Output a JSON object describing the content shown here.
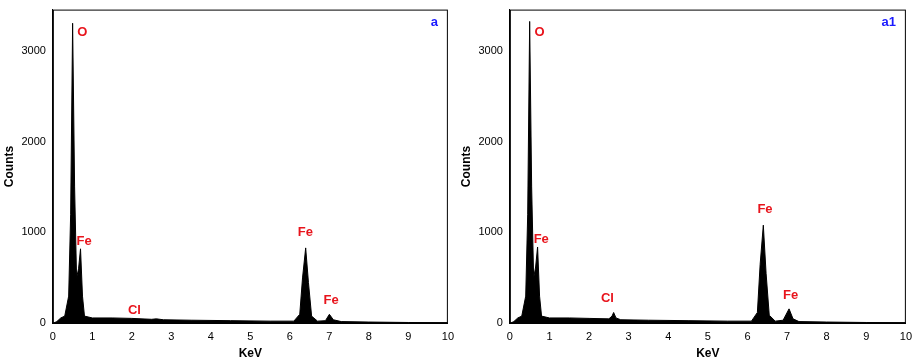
{
  "chart_data": [
    {
      "type": "line",
      "title": "a",
      "x_label": "KeV",
      "y_label": "Counts",
      "color": "#000000",
      "x": [
        0,
        0.1,
        0.2,
        0.3,
        0.4,
        0.45,
        0.5,
        0.55,
        0.6,
        0.65,
        0.7,
        0.75,
        0.8,
        1.0,
        1.5,
        2.0,
        2.5,
        2.62,
        2.8,
        3.5,
        4.5,
        5.5,
        6.1,
        6.25,
        6.32,
        6.4,
        6.47,
        6.55,
        6.7,
        6.9,
        7.0,
        7.1,
        7.3,
        8.0,
        9.0,
        10.0
      ],
      "values": [
        0,
        20,
        60,
        80,
        300,
        1200,
        3300,
        1500,
        500,
        600,
        820,
        300,
        80,
        60,
        60,
        55,
        45,
        50,
        40,
        35,
        30,
        25,
        25,
        100,
        500,
        830,
        450,
        80,
        25,
        30,
        100,
        40,
        20,
        15,
        10,
        8
      ],
      "xlim": [
        0,
        10
      ],
      "xticks": [
        0,
        1,
        2,
        3,
        4,
        5,
        6,
        7,
        8,
        9,
        10
      ],
      "ylim": [
        0,
        3450
      ],
      "yticks": [
        0,
        1000,
        2000,
        3000
      ],
      "grid": false,
      "annotations": [
        {
          "text": "O",
          "x": 0.62,
          "y": 3200
        },
        {
          "text": "Fe",
          "x": 0.6,
          "y": 900
        },
        {
          "text": "Cl",
          "x": 1.9,
          "y": 140
        },
        {
          "text": "Fe",
          "x": 6.2,
          "y": 1000
        },
        {
          "text": "Fe",
          "x": 6.85,
          "y": 250
        }
      ]
    },
    {
      "type": "line",
      "title": "a1",
      "x_label": "KeV",
      "y_label": "Counts",
      "color": "#000000",
      "x": [
        0,
        0.1,
        0.2,
        0.3,
        0.4,
        0.45,
        0.5,
        0.55,
        0.6,
        0.65,
        0.7,
        0.75,
        0.8,
        1.0,
        1.5,
        2.0,
        2.5,
        2.58,
        2.62,
        2.68,
        2.8,
        3.5,
        4.5,
        5.5,
        6.1,
        6.25,
        6.32,
        6.4,
        6.47,
        6.55,
        6.7,
        6.9,
        7.05,
        7.15,
        7.3,
        8.0,
        9.0,
        10.0
      ],
      "values": [
        0,
        20,
        60,
        80,
        300,
        1200,
        3320,
        1500,
        500,
        620,
        840,
        300,
        80,
        60,
        60,
        55,
        50,
        80,
        120,
        60,
        40,
        35,
        30,
        25,
        25,
        120,
        650,
        1080,
        550,
        90,
        25,
        35,
        160,
        50,
        20,
        15,
        10,
        8
      ],
      "xlim": [
        0,
        10
      ],
      "xticks": [
        0,
        1,
        2,
        3,
        4,
        5,
        6,
        7,
        8,
        9,
        10
      ],
      "ylim": [
        0,
        3450
      ],
      "yticks": [
        0,
        1000,
        2000,
        3000
      ],
      "grid": false,
      "annotations": [
        {
          "text": "O",
          "x": 0.62,
          "y": 3200
        },
        {
          "text": "Fe",
          "x": 0.6,
          "y": 920
        },
        {
          "text": "Cl",
          "x": 2.3,
          "y": 280
        },
        {
          "text": "Fe",
          "x": 6.25,
          "y": 1250
        },
        {
          "text": "Fe",
          "x": 6.9,
          "y": 310
        }
      ]
    }
  ]
}
